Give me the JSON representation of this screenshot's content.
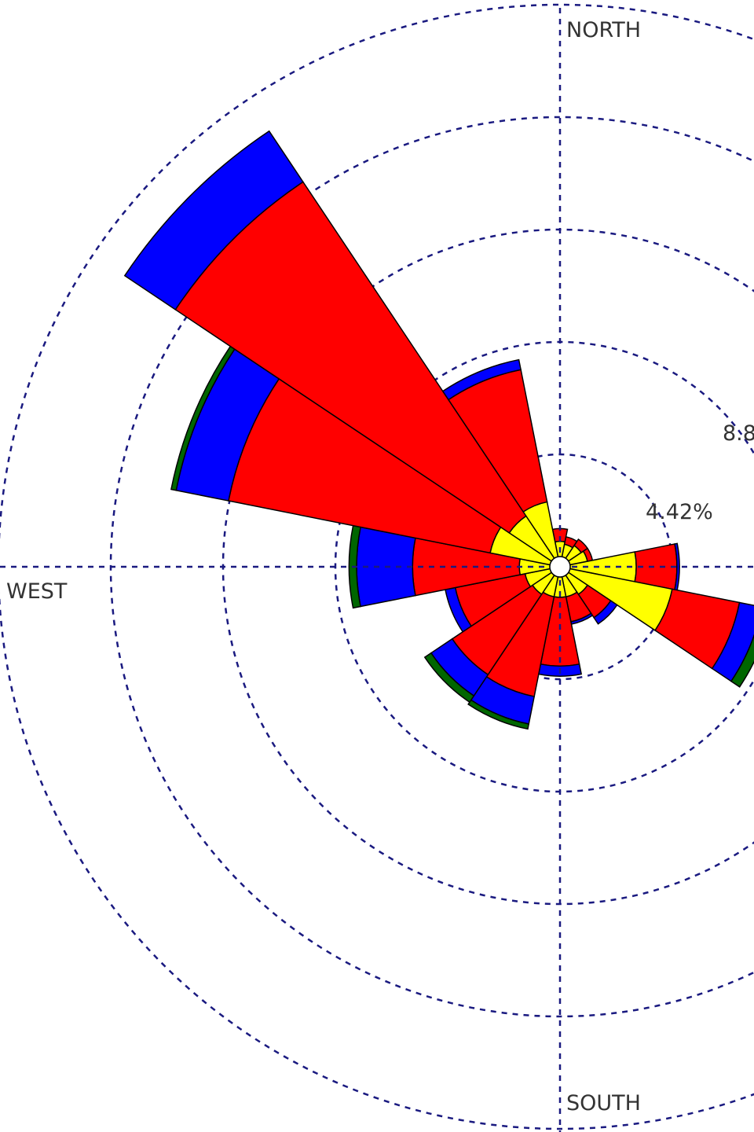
{
  "chart_data": {
    "type": "polar-bar",
    "title": "",
    "direction_labels": {
      "north": "NORTH",
      "west": "WEST",
      "south": "SOUTH"
    },
    "ring_labels": [
      "4.42%",
      "8.8"
    ],
    "ring_values": [
      4.42,
      8.84,
      13.26,
      17.68,
      22.1
    ],
    "sector_width_deg": 22.5,
    "colors": {
      "speed_1": "#ffff00",
      "speed_2": "#ff0000",
      "speed_3": "#0000ff",
      "speed_4": "#006600"
    },
    "sectors": [
      {
        "direction_deg": 0,
        "bands": [
          0.6,
          0.5,
          0.0,
          0.0
        ]
      },
      {
        "direction_deg": 22.5,
        "bands": [
          0.5,
          0.3,
          0.0,
          0.0
        ]
      },
      {
        "direction_deg": 45,
        "bands": [
          0.6,
          0.3,
          0.0,
          0.0
        ]
      },
      {
        "direction_deg": 67.5,
        "bands": [
          0.7,
          0.2,
          0.0,
          0.0
        ]
      },
      {
        "direction_deg": 90,
        "bands": [
          2.6,
          1.6,
          0.1,
          0.0
        ]
      },
      {
        "direction_deg": 112.5,
        "bands": [
          4.1,
          2.7,
          0.9,
          0.4
        ]
      },
      {
        "direction_deg": 135,
        "bands": [
          0.9,
          1.1,
          0.3,
          0.0
        ]
      },
      {
        "direction_deg": 157.5,
        "bands": [
          0.8,
          1.0,
          0.1,
          0.0
        ]
      },
      {
        "direction_deg": 180,
        "bands": [
          0.8,
          2.7,
          0.4,
          0.0
        ]
      },
      {
        "direction_deg": 202.5,
        "bands": [
          0.8,
          4.0,
          1.1,
          0.2
        ]
      },
      {
        "direction_deg": 225,
        "bands": [
          0.9,
          3.8,
          1.0,
          0.3
        ]
      },
      {
        "direction_deg": 247.5,
        "bands": [
          1.0,
          2.8,
          0.4,
          0.0
        ]
      },
      {
        "direction_deg": 270,
        "bands": [
          1.2,
          4.2,
          2.2,
          0.3
        ]
      },
      {
        "direction_deg": 292.5,
        "bands": [
          2.4,
          10.5,
          2.1,
          0.2
        ]
      },
      {
        "direction_deg": 315,
        "bands": [
          2.0,
          15.8,
          2.4,
          0.0
        ]
      },
      {
        "direction_deg": 337.5,
        "bands": [
          2.2,
          5.3,
          0.4,
          0.0
        ]
      }
    ]
  }
}
